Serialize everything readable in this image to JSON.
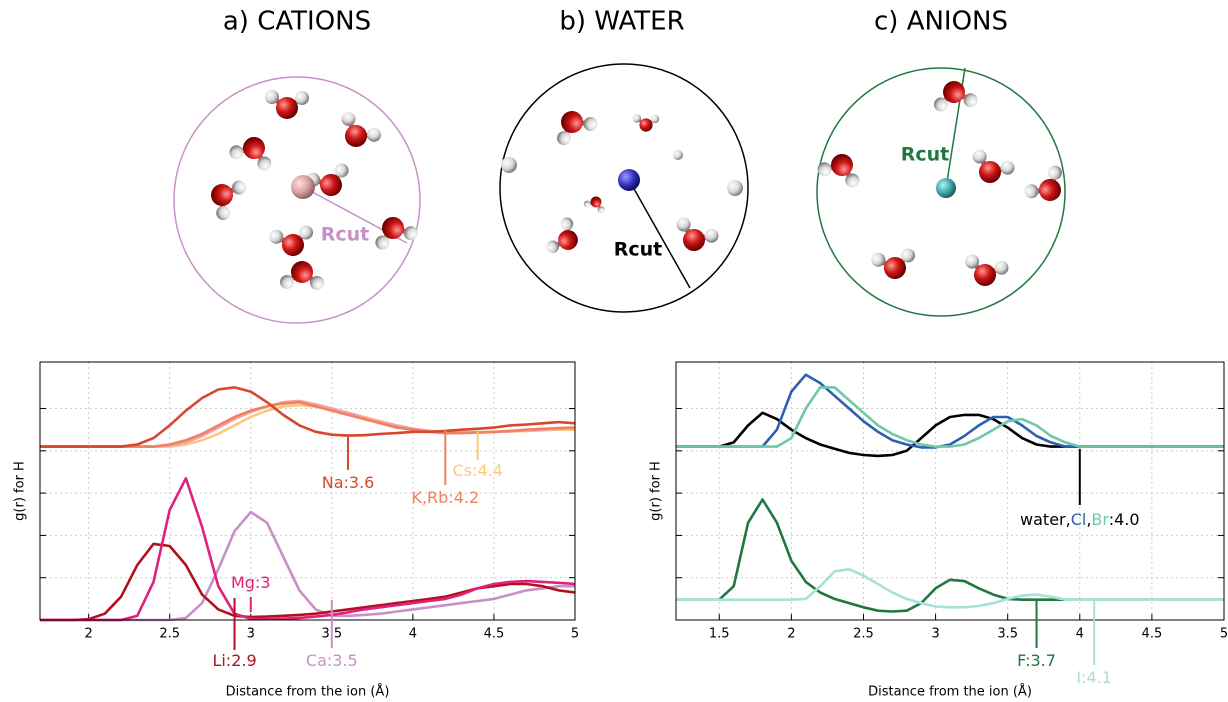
{
  "panels": [
    {
      "title": "a) CATIONS",
      "cut_label": "Rcut",
      "color": "#c890c8"
    },
    {
      "title": "b) WATER",
      "cut_label": "Rcut",
      "color": "#000000"
    },
    {
      "title": "c) ANIONS",
      "cut_label": "Rcut",
      "color": "#207840"
    }
  ],
  "chart_data": [
    {
      "type": "line",
      "ylabel": "g(r) for H",
      "xlabel": "Distance from the ion (Å)",
      "xlim": [
        1.7,
        5
      ],
      "xticks": [
        2,
        2.5,
        3,
        3.5,
        4,
        4.5,
        5
      ],
      "ylim": [
        0,
        6.1
      ],
      "yticks": [
        1,
        2,
        3,
        4,
        5
      ],
      "grid": true,
      "x": [
        1.7,
        1.8,
        1.9,
        2.0,
        2.1,
        2.2,
        2.3,
        2.4,
        2.5,
        2.6,
        2.7,
        2.8,
        2.9,
        3.0,
        3.1,
        3.2,
        3.3,
        3.4,
        3.5,
        3.6,
        3.7,
        3.8,
        3.9,
        4.0,
        4.1,
        4.2,
        4.3,
        4.4,
        4.5,
        4.6,
        4.7,
        4.8,
        4.9,
        5.0
      ],
      "series": [
        {
          "color": "#fdc87a",
          "values": [
            4.1,
            4.1,
            4.1,
            4.1,
            4.1,
            4.1,
            4.1,
            4.1,
            4.1,
            4.15,
            4.25,
            4.4,
            4.6,
            4.8,
            4.95,
            5.05,
            5.08,
            5.05,
            5.0,
            4.9,
            4.8,
            4.7,
            4.6,
            4.52,
            4.47,
            4.45,
            4.44,
            4.44,
            4.45,
            4.46,
            4.47,
            4.48,
            4.5,
            4.5
          ]
        },
        {
          "color": "#f4a0b0",
          "values": [
            4.1,
            4.1,
            4.1,
            4.1,
            4.1,
            4.1,
            4.1,
            4.1,
            4.12,
            4.2,
            4.35,
            4.55,
            4.75,
            4.92,
            5.05,
            5.15,
            5.18,
            5.1,
            5.0,
            4.9,
            4.78,
            4.68,
            4.6,
            4.52,
            4.47,
            4.44,
            4.43,
            4.43,
            4.44,
            4.46,
            4.48,
            4.5,
            4.52,
            4.53
          ]
        },
        {
          "color": "#f08060",
          "values": [
            4.1,
            4.1,
            4.1,
            4.1,
            4.1,
            4.1,
            4.1,
            4.1,
            4.15,
            4.25,
            4.4,
            4.6,
            4.8,
            4.95,
            5.05,
            5.12,
            5.15,
            5.05,
            4.95,
            4.85,
            4.75,
            4.65,
            4.55,
            4.5,
            4.45,
            4.42,
            4.42,
            4.43,
            4.45,
            4.47,
            4.5,
            4.52,
            4.54,
            4.55
          ]
        },
        {
          "color": "#d9462e",
          "values": [
            4.1,
            4.1,
            4.1,
            4.1,
            4.1,
            4.1,
            4.15,
            4.3,
            4.6,
            4.95,
            5.25,
            5.45,
            5.5,
            5.4,
            5.15,
            4.85,
            4.6,
            4.45,
            4.38,
            4.36,
            4.37,
            4.4,
            4.42,
            4.45,
            4.45,
            4.47,
            4.5,
            4.52,
            4.55,
            4.6,
            4.62,
            4.65,
            4.68,
            4.65
          ]
        },
        {
          "color": "#c890c8",
          "values": [
            0,
            0,
            0,
            0,
            0,
            0,
            0,
            0,
            0,
            0.05,
            0.4,
            1.2,
            2.1,
            2.55,
            2.3,
            1.5,
            0.7,
            0.25,
            0.1,
            0.1,
            0.12,
            0.15,
            0.2,
            0.25,
            0.3,
            0.35,
            0.4,
            0.45,
            0.5,
            0.6,
            0.7,
            0.75,
            0.8,
            0.8
          ]
        },
        {
          "color": "#b01020",
          "values": [
            0,
            0,
            0,
            0.02,
            0.15,
            0.55,
            1.3,
            1.8,
            1.75,
            1.3,
            0.6,
            0.25,
            0.1,
            0.07,
            0.08,
            0.1,
            0.12,
            0.15,
            0.2,
            0.25,
            0.3,
            0.35,
            0.4,
            0.45,
            0.5,
            0.55,
            0.65,
            0.75,
            0.8,
            0.85,
            0.85,
            0.8,
            0.7,
            0.65
          ]
        },
        {
          "color": "#e0207a",
          "values": [
            0,
            0,
            0,
            0,
            0,
            0,
            0.1,
            0.9,
            2.6,
            3.35,
            2.2,
            0.8,
            0.15,
            0.03,
            0.02,
            0.03,
            0.05,
            0.08,
            0.12,
            0.18,
            0.25,
            0.3,
            0.35,
            0.4,
            0.45,
            0.5,
            0.6,
            0.75,
            0.85,
            0.9,
            0.92,
            0.9,
            0.88,
            0.85
          ]
        }
      ],
      "annotations": [
        {
          "x": 3.6,
          "label_parts": [
            {
              "text": "Na:3.6",
              "color": "#d9462e"
            }
          ]
        },
        {
          "x": 4.2,
          "label_parts": [
            {
              "text": "K,Rb:4.2",
              "color": "#f08060"
            }
          ]
        },
        {
          "x": 4.4,
          "label_parts": [
            {
              "text": "Cs:4.4",
              "color": "#fdc87a"
            }
          ]
        },
        {
          "x": 3,
          "label_parts": [
            {
              "text": "Mg:3",
              "color": "#e0207a"
            }
          ]
        },
        {
          "x": 2.9,
          "label_parts": [
            {
              "text": "Li:2.9",
              "color": "#b01020"
            }
          ]
        },
        {
          "x": 3.5,
          "label_parts": [
            {
              "text": "Ca:3.5",
              "color": "#c890c8"
            }
          ]
        }
      ]
    },
    {
      "type": "line",
      "ylabel": "g(r) for H",
      "xlabel": "Distance from the ion (Å)",
      "xlim": [
        1.2,
        5
      ],
      "xticks": [
        1.5,
        2,
        2.5,
        3,
        3.5,
        4,
        4.5,
        5
      ],
      "ylim": [
        0,
        6.1
      ],
      "yticks": [
        1,
        2,
        3,
        4,
        5
      ],
      "grid": true,
      "x": [
        1.2,
        1.3,
        1.4,
        1.5,
        1.6,
        1.7,
        1.8,
        1.9,
        2.0,
        2.1,
        2.2,
        2.3,
        2.4,
        2.5,
        2.6,
        2.7,
        2.8,
        2.9,
        3.0,
        3.1,
        3.2,
        3.3,
        3.4,
        3.5,
        3.6,
        3.7,
        3.8,
        3.9,
        4.0,
        4.1,
        4.2,
        4.3,
        4.4,
        4.5,
        4.6,
        4.7,
        4.8,
        4.9,
        5.0
      ],
      "series": [
        {
          "color": "#000000",
          "values": [
            4.1,
            4.1,
            4.1,
            4.1,
            4.2,
            4.6,
            4.9,
            4.75,
            4.5,
            4.3,
            4.15,
            4.05,
            3.95,
            3.9,
            3.88,
            3.9,
            4.0,
            4.3,
            4.6,
            4.8,
            4.85,
            4.85,
            4.75,
            4.55,
            4.3,
            4.15,
            4.1,
            4.1,
            4.1,
            4.1,
            4.1,
            4.1,
            4.1,
            4.1,
            4.1,
            4.1,
            4.1,
            4.1,
            4.1
          ]
        },
        {
          "color": "#2f60b0",
          "values": [
            4.1,
            4.1,
            4.1,
            4.1,
            4.1,
            4.1,
            4.1,
            4.5,
            5.4,
            5.8,
            5.6,
            5.3,
            5.0,
            4.7,
            4.45,
            4.25,
            4.15,
            4.08,
            4.08,
            4.15,
            4.35,
            4.6,
            4.8,
            4.8,
            4.6,
            4.35,
            4.2,
            4.1,
            4.1,
            4.1,
            4.1,
            4.1,
            4.1,
            4.1,
            4.1,
            4.1,
            4.1,
            4.1,
            4.1
          ]
        },
        {
          "color": "#70c8a8",
          "values": [
            4.1,
            4.1,
            4.1,
            4.1,
            4.1,
            4.1,
            4.1,
            4.1,
            4.3,
            5.0,
            5.5,
            5.5,
            5.2,
            4.9,
            4.6,
            4.4,
            4.25,
            4.15,
            4.1,
            4.1,
            4.15,
            4.3,
            4.5,
            4.7,
            4.75,
            4.6,
            4.35,
            4.2,
            4.1,
            4.1,
            4.1,
            4.1,
            4.1,
            4.1,
            4.1,
            4.1,
            4.1,
            4.1,
            4.1
          ]
        },
        {
          "color": "#207840",
          "values": [
            0.48,
            0.48,
            0.48,
            0.48,
            0.8,
            2.3,
            2.85,
            2.3,
            1.4,
            0.9,
            0.65,
            0.5,
            0.4,
            0.3,
            0.22,
            0.2,
            0.22,
            0.4,
            0.75,
            0.95,
            0.92,
            0.75,
            0.6,
            0.5,
            0.48,
            0.48,
            0.48,
            0.48,
            0.48,
            0.48,
            0.48,
            0.48,
            0.48,
            0.48,
            0.48,
            0.48,
            0.48,
            0.48,
            0.48
          ]
        },
        {
          "color": "#a8e0d8",
          "values": [
            0.48,
            0.48,
            0.48,
            0.48,
            0.48,
            0.48,
            0.48,
            0.48,
            0.48,
            0.5,
            0.8,
            1.15,
            1.2,
            1.05,
            0.85,
            0.65,
            0.5,
            0.4,
            0.32,
            0.3,
            0.3,
            0.33,
            0.4,
            0.5,
            0.58,
            0.6,
            0.55,
            0.48,
            0.48,
            0.48,
            0.48,
            0.48,
            0.48,
            0.48,
            0.48,
            0.48,
            0.48,
            0.48,
            0.48
          ]
        }
      ],
      "annotations": [
        {
          "x": 4,
          "label_parts": [
            {
              "text": "water,",
              "color": "#000000"
            },
            {
              "text": "Cl",
              "color": "#2f60b0"
            },
            {
              "text": ",",
              "color": "#000000"
            },
            {
              "text": "Br",
              "color": "#70c8a8"
            },
            {
              "text": ":4.0",
              "color": "#000000"
            }
          ]
        },
        {
          "x": 3.7,
          "label_parts": [
            {
              "text": "F:3.7",
              "color": "#207840"
            }
          ]
        },
        {
          "x": 4.1,
          "label_parts": [
            {
              "text": "I:4.1",
              "color": "#a8e0d8"
            }
          ]
        }
      ]
    }
  ]
}
